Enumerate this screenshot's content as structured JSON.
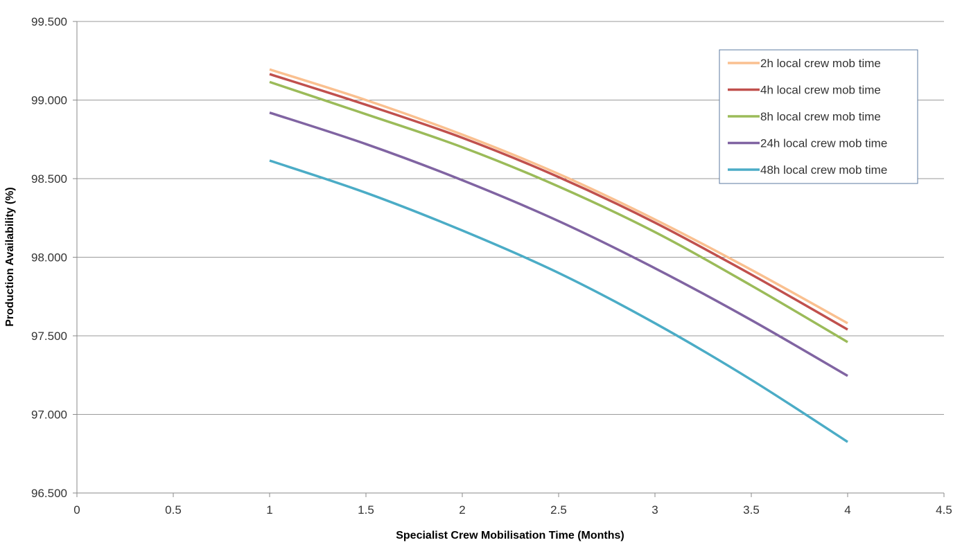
{
  "chart_data": {
    "type": "line",
    "title": "",
    "xlabel": "Specialist Crew Mobilisation Time (Months)",
    "ylabel": "Production Availability (%)",
    "xlim": [
      0,
      4.5
    ],
    "ylim": [
      96.5,
      99.5
    ],
    "x_ticks": [
      "0",
      "0.5",
      "1",
      "1.5",
      "2",
      "2.5",
      "3",
      "3.5",
      "4",
      "4.5"
    ],
    "y_ticks": [
      "96.500",
      "97.000",
      "97.500",
      "98.000",
      "98.500",
      "99.000",
      "99.500"
    ],
    "grid": "horizontal",
    "legend_position": "top-right",
    "x": [
      1,
      1.5,
      2,
      2.5,
      3,
      3.5,
      4
    ],
    "series": [
      {
        "name": "2h local crew mob time",
        "color": "#fac090",
        "values": [
          99.195,
          99.0,
          98.78,
          98.53,
          98.24,
          97.92,
          97.58
        ]
      },
      {
        "name": "4h local crew mob time",
        "color": "#c0504d",
        "values": [
          99.165,
          98.97,
          98.76,
          98.51,
          98.22,
          97.89,
          97.54
        ]
      },
      {
        "name": "8h local crew mob time",
        "color": "#9bbb59",
        "values": [
          99.115,
          98.91,
          98.7,
          98.45,
          98.16,
          97.82,
          97.46
        ]
      },
      {
        "name": "24h local crew mob time",
        "color": "#8064a2",
        "values": [
          98.92,
          98.72,
          98.49,
          98.23,
          97.93,
          97.6,
          97.245
        ]
      },
      {
        "name": "48h local crew mob time",
        "color": "#4bacc6",
        "values": [
          98.615,
          98.41,
          98.17,
          97.9,
          97.58,
          97.22,
          96.825
        ]
      }
    ]
  }
}
